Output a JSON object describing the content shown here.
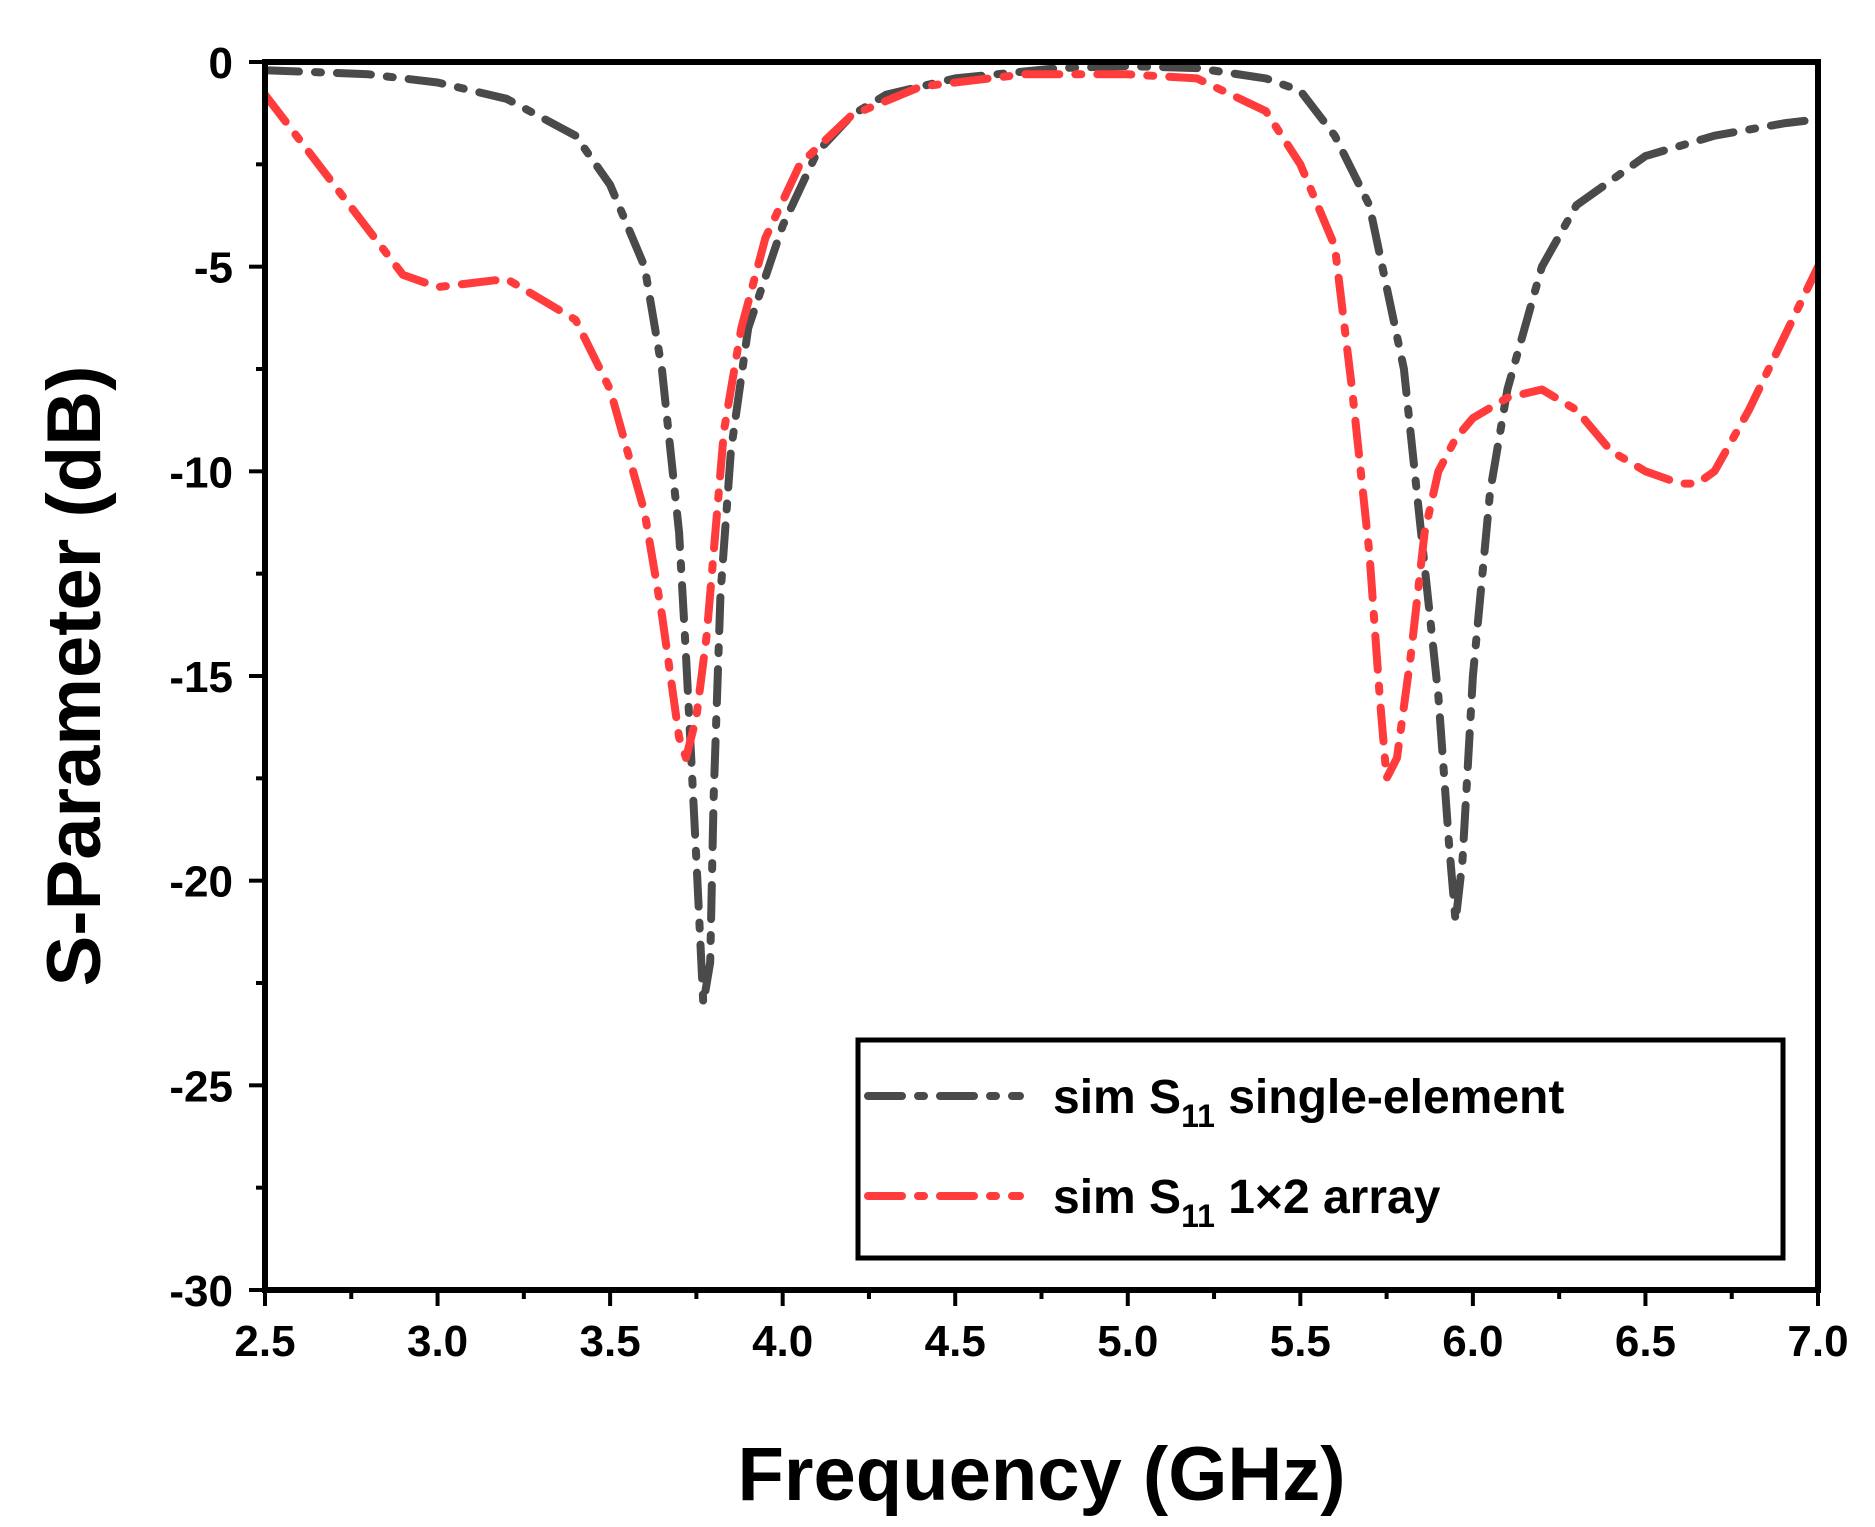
{
  "chart_data": {
    "type": "line",
    "title": "",
    "xlabel": "Frequency (GHz)",
    "ylabel": "S-Parameter (dB)",
    "xlim": [
      2.5,
      7.0
    ],
    "ylim": [
      -30,
      0
    ],
    "xticks": [
      "2.5",
      "3.0",
      "3.5",
      "4.0",
      "4.5",
      "5.0",
      "5.5",
      "6.0",
      "6.5",
      "7.0"
    ],
    "yticks": [
      "0",
      "-5",
      "-10",
      "-15",
      "-20",
      "-25",
      "-30"
    ],
    "legend_position": "bottom-right",
    "series": [
      {
        "name": "sim S11 single-element",
        "legend_main": "sim S",
        "legend_sub": "11",
        "legend_tail": " single-element",
        "color": "#4a4a4a",
        "x": [
          2.5,
          2.8,
          3.0,
          3.2,
          3.4,
          3.5,
          3.6,
          3.65,
          3.7,
          3.72,
          3.75,
          3.77,
          3.79,
          3.8,
          3.82,
          3.85,
          3.9,
          4.0,
          4.1,
          4.2,
          4.3,
          4.5,
          4.8,
          5.0,
          5.2,
          5.4,
          5.5,
          5.6,
          5.7,
          5.8,
          5.85,
          5.9,
          5.93,
          5.95,
          5.97,
          6.0,
          6.05,
          6.1,
          6.2,
          6.3,
          6.5,
          6.7,
          6.9,
          7.0
        ],
        "y": [
          -0.2,
          -0.3,
          -0.5,
          -0.9,
          -1.8,
          -3.0,
          -5.0,
          -7.5,
          -11.5,
          -14.5,
          -19.5,
          -23.0,
          -22.0,
          -18.0,
          -13.0,
          -9.5,
          -6.5,
          -4.0,
          -2.2,
          -1.3,
          -0.8,
          -0.4,
          -0.15,
          -0.1,
          -0.15,
          -0.4,
          -0.7,
          -1.8,
          -3.5,
          -7.5,
          -11.5,
          -15.5,
          -19.0,
          -21.0,
          -19.5,
          -15.0,
          -10.5,
          -8.0,
          -5.0,
          -3.5,
          -2.3,
          -1.8,
          -1.5,
          -1.4
        ]
      },
      {
        "name": "sim S11 1×2 array",
        "legend_main": "sim S",
        "legend_sub": "11",
        "legend_tail": " 1×2 array",
        "color": "#ff3b3b",
        "x": [
          2.5,
          2.7,
          2.9,
          3.0,
          3.2,
          3.4,
          3.5,
          3.6,
          3.65,
          3.7,
          3.72,
          3.75,
          3.78,
          3.8,
          3.83,
          3.88,
          3.95,
          4.05,
          4.2,
          4.4,
          4.7,
          5.0,
          5.2,
          5.4,
          5.5,
          5.6,
          5.65,
          5.7,
          5.73,
          5.75,
          5.78,
          5.82,
          5.86,
          5.9,
          5.95,
          6.0,
          6.1,
          6.2,
          6.3,
          6.4,
          6.5,
          6.6,
          6.65,
          6.7,
          6.8,
          7.0
        ],
        "y": [
          -0.8,
          -3.0,
          -5.2,
          -5.5,
          -5.3,
          -6.3,
          -8.0,
          -11.0,
          -13.5,
          -16.5,
          -17.0,
          -16.0,
          -14.0,
          -12.0,
          -9.0,
          -6.5,
          -4.3,
          -2.5,
          -1.3,
          -0.6,
          -0.3,
          -0.3,
          -0.4,
          -1.2,
          -2.5,
          -4.5,
          -8.0,
          -12.0,
          -15.5,
          -17.5,
          -17.0,
          -14.5,
          -11.5,
          -10.0,
          -9.2,
          -8.7,
          -8.2,
          -8.0,
          -8.5,
          -9.5,
          -10.0,
          -10.3,
          -10.3,
          -10.0,
          -8.5,
          -5.0
        ]
      }
    ]
  }
}
